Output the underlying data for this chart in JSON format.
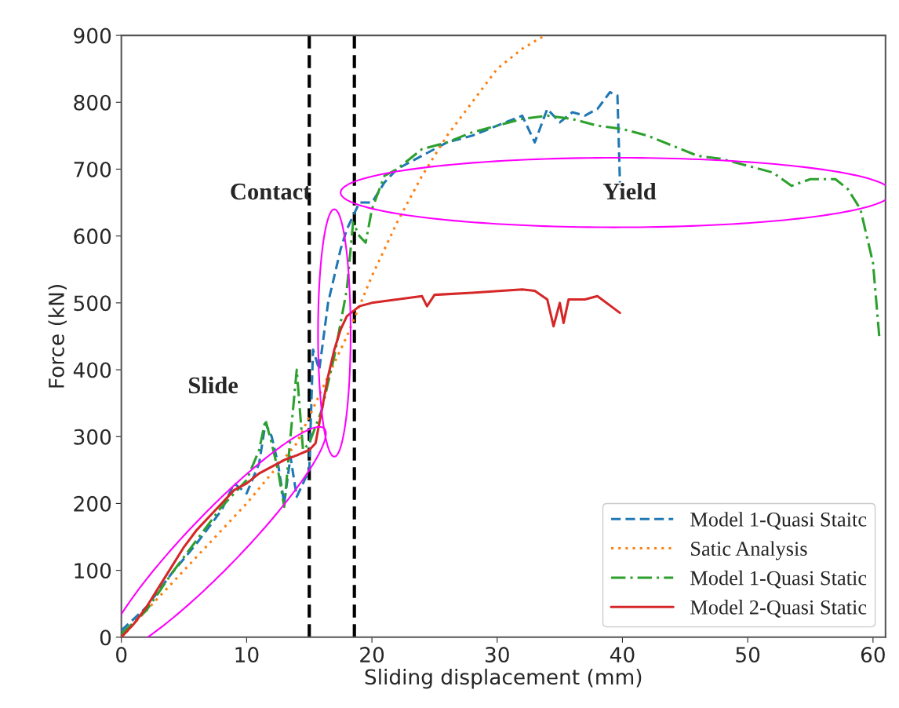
{
  "chart_data": {
    "type": "line",
    "xlabel": "Sliding displacement (mm)",
    "ylabel": "Force (kN)",
    "xlim": [
      0,
      61
    ],
    "ylim": [
      0,
      900
    ],
    "xticks": [
      0,
      10,
      20,
      30,
      40,
      50,
      60
    ],
    "yticks": [
      0,
      100,
      200,
      300,
      400,
      500,
      600,
      700,
      800,
      900
    ],
    "grid": false,
    "legend": "bottom right",
    "series": [
      {
        "name": "Model 1-Quasi Staitc",
        "color": "#1f77b4",
        "line_style": "dashed",
        "x": [
          0,
          2,
          4,
          6,
          8,
          9,
          10,
          11,
          11.5,
          12,
          12.5,
          13,
          13.5,
          14,
          14.5,
          15,
          15.3,
          15.8,
          16.5,
          17,
          17.5,
          18,
          19,
          20,
          21,
          22,
          24,
          26,
          28,
          30,
          32,
          33,
          34,
          35,
          36,
          37,
          38,
          39,
          39.6,
          39.8
        ],
        "values": [
          10,
          45,
          95,
          140,
          190,
          230,
          215,
          260,
          320,
          300,
          260,
          200,
          270,
          210,
          230,
          250,
          430,
          400,
          500,
          540,
          580,
          610,
          650,
          650,
          680,
          700,
          720,
          740,
          750,
          765,
          780,
          740,
          790,
          770,
          785,
          780,
          790,
          815,
          810,
          680
        ]
      },
      {
        "name": "Satic Analysis",
        "color": "#ff7f0e",
        "line_style": "dotted",
        "x": [
          0,
          5,
          10,
          14,
          16,
          18,
          20,
          22,
          24,
          26,
          28,
          30,
          32,
          33.8
        ],
        "values": [
          0,
          100,
          200,
          290,
          370,
          450,
          540,
          620,
          690,
          750,
          800,
          850,
          880,
          900
        ]
      },
      {
        "name": "Model 1-Quasi Static",
        "color": "#2ca02c",
        "line_style": "dashdot",
        "x": [
          0,
          2,
          4,
          6,
          8,
          10,
          11,
          11.5,
          12,
          12.5,
          13,
          13.5,
          14,
          14.5,
          15,
          16,
          17,
          18,
          18.5,
          19,
          19.5,
          20,
          21,
          22,
          24,
          26,
          28,
          30,
          32,
          34,
          36,
          38,
          40,
          42,
          44,
          46,
          48,
          50,
          52,
          53.5,
          55,
          57,
          58,
          59,
          60,
          60.5
        ],
        "values": [
          5,
          40,
          95,
          145,
          195,
          235,
          280,
          325,
          290,
          250,
          195,
          300,
          400,
          280,
          290,
          340,
          420,
          520,
          620,
          600,
          590,
          640,
          690,
          700,
          730,
          740,
          755,
          765,
          775,
          780,
          775,
          765,
          760,
          750,
          735,
          720,
          715,
          705,
          695,
          675,
          685,
          685,
          670,
          640,
          560,
          450
        ]
      },
      {
        "name": "Model 2-Quasi Static",
        "color": "#d62728",
        "line_style": "solid",
        "x": [
          0,
          1,
          2,
          3,
          4,
          5,
          6,
          7,
          8,
          9,
          10,
          11,
          12,
          13,
          14,
          15,
          15.5,
          16,
          16.5,
          17,
          17.5,
          18,
          19,
          20,
          22,
          24,
          24.4,
          25,
          28,
          32,
          33,
          34,
          34.5,
          35,
          35.3,
          35.7,
          37,
          38,
          39.8
        ],
        "values": [
          0,
          20,
          45,
          75,
          105,
          135,
          160,
          180,
          200,
          220,
          230,
          245,
          255,
          265,
          272,
          280,
          290,
          340,
          390,
          430,
          460,
          480,
          495,
          500,
          505,
          510,
          495,
          512,
          515,
          520,
          518,
          505,
          465,
          500,
          470,
          505,
          505,
          510,
          485
        ]
      }
    ],
    "ref_lines": [
      {
        "axis": "x",
        "value": 15,
        "color": "#000000",
        "line_style": "dashed"
      },
      {
        "axis": "x",
        "value": 18.6,
        "color": "#000000",
        "line_style": "dashed"
      }
    ],
    "annotations": [
      "Slide",
      "Contact",
      "Yield"
    ]
  }
}
